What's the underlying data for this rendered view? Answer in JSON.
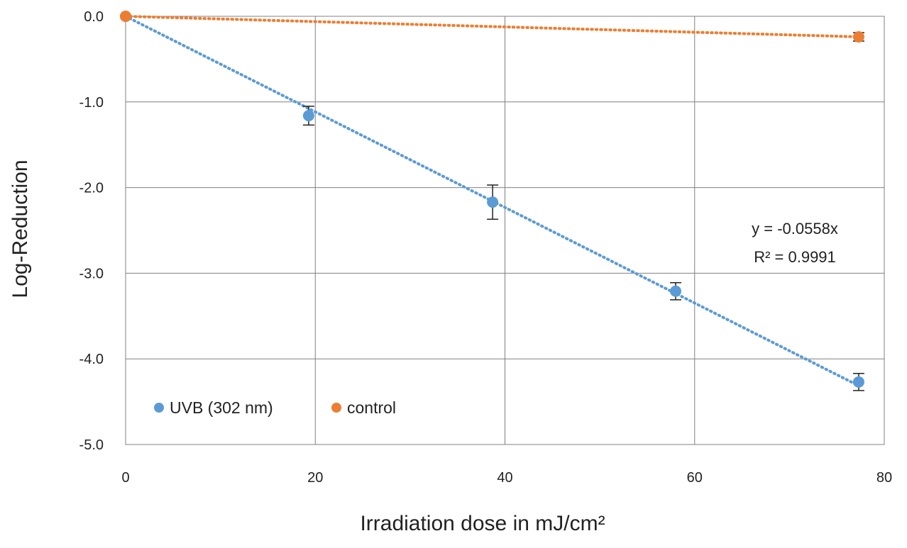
{
  "chart_data": {
    "type": "scatter",
    "title": "",
    "xlabel": "Irradiation dose in mJ/cm²",
    "ylabel": "Log-Reduction",
    "xlim": [
      0,
      80
    ],
    "ylim": [
      -5.0,
      0.0
    ],
    "x_ticks": [
      "0",
      "20",
      "40",
      "60",
      "80"
    ],
    "y_ticks": [
      "0.0",
      "-1.0",
      "-2.0",
      "-3.0",
      "-4.0",
      "-5.0"
    ],
    "grid": true,
    "legend_position": "bottom-left",
    "series": [
      {
        "name": "UVB (302 nm)",
        "color": "#5b9bd5",
        "points": [
          {
            "x": 0,
            "y": 0.0,
            "err": 0.0
          },
          {
            "x": 19.3,
            "y": -1.16,
            "err": 0.11
          },
          {
            "x": 38.7,
            "y": -2.17,
            "err": 0.2
          },
          {
            "x": 58.0,
            "y": -3.21,
            "err": 0.1
          },
          {
            "x": 77.3,
            "y": -4.27,
            "err": 0.1
          }
        ],
        "trendline": {
          "slope": -0.0558,
          "intercept": 0,
          "x_range": [
            0,
            77.3
          ],
          "style": "dotted"
        }
      },
      {
        "name": "control",
        "color": "#ed7d31",
        "points": [
          {
            "x": 0,
            "y": 0.0,
            "err": 0.0
          },
          {
            "x": 77.3,
            "y": -0.24,
            "err": 0.05
          }
        ],
        "trendline": {
          "slope": -0.0031,
          "intercept": 0,
          "x_range": [
            0,
            77.3
          ],
          "style": "dotted"
        }
      }
    ],
    "annotations": {
      "equation": "y = -0.0558x",
      "r_squared": "R² = 0.9991"
    }
  }
}
